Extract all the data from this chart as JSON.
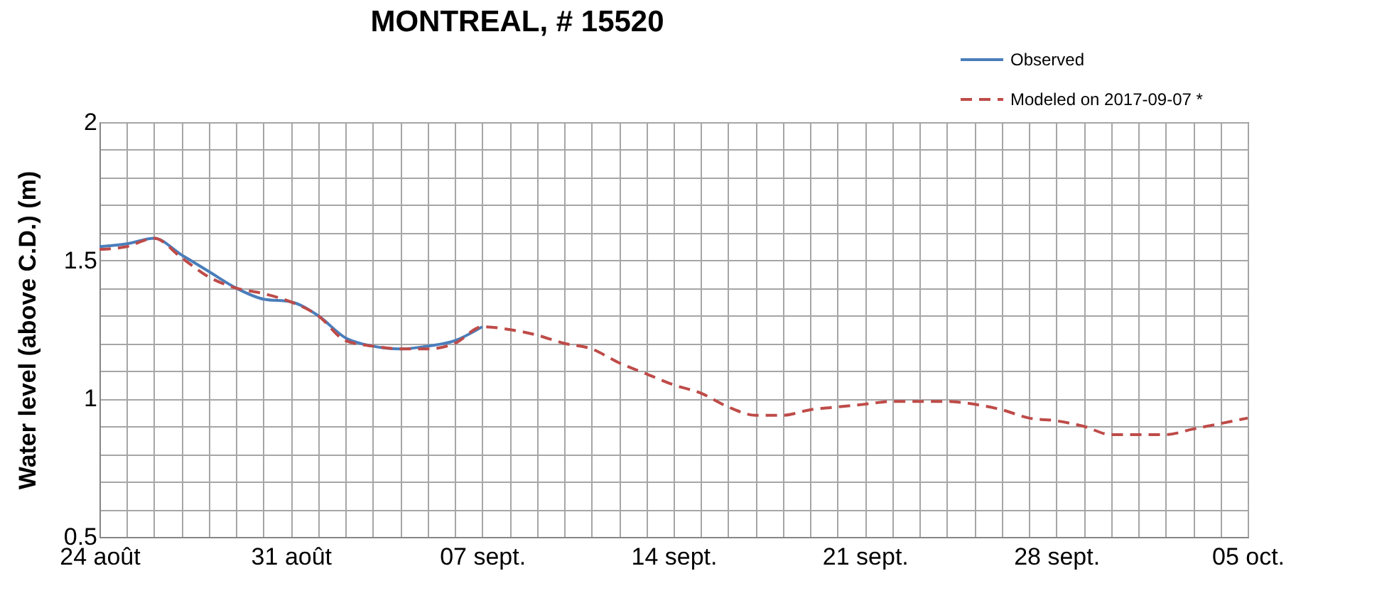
{
  "chart_data": {
    "type": "line",
    "title": "MONTREAL, # 15520",
    "ylabel": "Water level (above C.D.)        (m)",
    "series": [
      {
        "name": "Observed",
        "color": "#4a7ebb",
        "line_style": "solid",
        "x": [
          "2017-08-24",
          "2017-08-25",
          "2017-08-26",
          "2017-08-27",
          "2017-08-28",
          "2017-08-29",
          "2017-08-30",
          "2017-08-31",
          "2017-09-01",
          "2017-09-02",
          "2017-09-03",
          "2017-09-04",
          "2017-09-05",
          "2017-09-06",
          "2017-09-07"
        ],
        "values": [
          1.55,
          1.56,
          1.58,
          1.52,
          1.46,
          1.4,
          1.36,
          1.35,
          1.3,
          1.22,
          1.19,
          1.18,
          1.19,
          1.21,
          1.26
        ]
      },
      {
        "name": "Modeled on 2017-09-07 *",
        "color": "#be4b48",
        "line_style": "dashed",
        "x": [
          "2017-08-24",
          "2017-08-25",
          "2017-08-26",
          "2017-08-27",
          "2017-08-28",
          "2017-08-29",
          "2017-08-30",
          "2017-08-31",
          "2017-09-01",
          "2017-09-02",
          "2017-09-03",
          "2017-09-04",
          "2017-09-05",
          "2017-09-06",
          "2017-09-07",
          "2017-09-08",
          "2017-09-09",
          "2017-09-10",
          "2017-09-11",
          "2017-09-12",
          "2017-09-13",
          "2017-09-14",
          "2017-09-15",
          "2017-09-16",
          "2017-09-17",
          "2017-09-18",
          "2017-09-19",
          "2017-09-20",
          "2017-09-21",
          "2017-09-22",
          "2017-09-23",
          "2017-09-24",
          "2017-09-25",
          "2017-09-26",
          "2017-09-27",
          "2017-09-28",
          "2017-09-29",
          "2017-09-30",
          "2017-10-01",
          "2017-10-02",
          "2017-10-03",
          "2017-10-04",
          "2017-10-05"
        ],
        "values": [
          1.54,
          1.55,
          1.58,
          1.51,
          1.44,
          1.4,
          1.38,
          1.35,
          1.3,
          1.21,
          1.19,
          1.18,
          1.18,
          1.2,
          1.26,
          1.25,
          1.23,
          1.2,
          1.18,
          1.13,
          1.09,
          1.05,
          1.02,
          0.97,
          0.94,
          0.94,
          0.96,
          0.97,
          0.98,
          0.99,
          0.99,
          0.99,
          0.98,
          0.96,
          0.93,
          0.92,
          0.9,
          0.87,
          0.87,
          0.87,
          0.89,
          0.91,
          0.93
        ]
      }
    ],
    "xlim": [
      "2017-08-24",
      "2017-10-05"
    ],
    "xticks": [
      {
        "value": "2017-08-24",
        "label": "24 août"
      },
      {
        "value": "2017-08-25",
        "label": null
      },
      {
        "value": "2017-08-26",
        "label": null
      },
      {
        "value": "2017-08-27",
        "label": null
      },
      {
        "value": "2017-08-28",
        "label": null
      },
      {
        "value": "2017-08-29",
        "label": null
      },
      {
        "value": "2017-08-30",
        "label": null
      },
      {
        "value": "2017-08-31",
        "label": "31 août"
      },
      {
        "value": "2017-09-01",
        "label": null
      },
      {
        "value": "2017-09-02",
        "label": null
      },
      {
        "value": "2017-09-03",
        "label": null
      },
      {
        "value": "2017-09-04",
        "label": null
      },
      {
        "value": "2017-09-05",
        "label": null
      },
      {
        "value": "2017-09-06",
        "label": null
      },
      {
        "value": "2017-09-07",
        "label": "07 sept."
      },
      {
        "value": "2017-09-08",
        "label": null
      },
      {
        "value": "2017-09-09",
        "label": null
      },
      {
        "value": "2017-09-10",
        "label": null
      },
      {
        "value": "2017-09-11",
        "label": null
      },
      {
        "value": "2017-09-12",
        "label": null
      },
      {
        "value": "2017-09-13",
        "label": null
      },
      {
        "value": "2017-09-14",
        "label": "14 sept."
      },
      {
        "value": "2017-09-15",
        "label": null
      },
      {
        "value": "2017-09-16",
        "label": null
      },
      {
        "value": "2017-09-17",
        "label": null
      },
      {
        "value": "2017-09-18",
        "label": null
      },
      {
        "value": "2017-09-19",
        "label": null
      },
      {
        "value": "2017-09-20",
        "label": null
      },
      {
        "value": "2017-09-21",
        "label": "21 sept."
      },
      {
        "value": "2017-09-22",
        "label": null
      },
      {
        "value": "2017-09-23",
        "label": null
      },
      {
        "value": "2017-09-24",
        "label": null
      },
      {
        "value": "2017-09-25",
        "label": null
      },
      {
        "value": "2017-09-26",
        "label": null
      },
      {
        "value": "2017-09-27",
        "label": null
      },
      {
        "value": "2017-09-28",
        "label": "28 sept."
      },
      {
        "value": "2017-09-29",
        "label": null
      },
      {
        "value": "2017-09-30",
        "label": null
      },
      {
        "value": "2017-10-01",
        "label": null
      },
      {
        "value": "2017-10-02",
        "label": null
      },
      {
        "value": "2017-10-03",
        "label": null
      },
      {
        "value": "2017-10-04",
        "label": null
      },
      {
        "value": "2017-10-05",
        "label": "05 oct."
      }
    ],
    "ylim": [
      0.5,
      2
    ],
    "yticks": [
      0.5,
      {
        "value": 0.6,
        "label": null
      },
      {
        "value": 0.7,
        "label": null
      },
      {
        "value": 0.8,
        "label": null
      },
      {
        "value": 0.9,
        "label": null
      },
      1,
      {
        "value": 1.1,
        "label": null
      },
      {
        "value": 1.2,
        "label": null
      },
      {
        "value": 1.3,
        "label": null
      },
      {
        "value": 1.4,
        "label": null
      },
      1.5,
      {
        "value": 1.6,
        "label": null
      },
      {
        "value": 1.7,
        "label": null
      },
      {
        "value": 1.8,
        "label": null
      },
      {
        "value": 1.9,
        "label": null
      },
      2
    ],
    "grid": true,
    "legend": "top right",
    "marker": "none"
  }
}
